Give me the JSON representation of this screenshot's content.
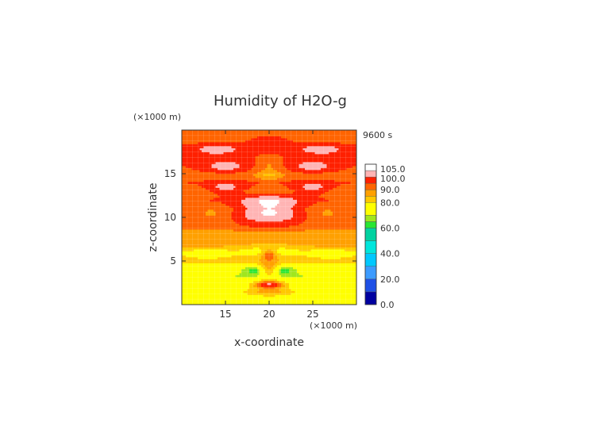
{
  "chart_data": {
    "type": "heatmap",
    "title": "Humidity of H2O-g",
    "time_label": "9600 s",
    "xlabel": "x-coordinate",
    "ylabel": "z-coordinate",
    "x_unit": "(×1000 m)",
    "y_unit": "(×1000 m)",
    "xlim": [
      10,
      30
    ],
    "ylim": [
      0,
      20
    ],
    "x_ticks": [
      15,
      20,
      25
    ],
    "y_ticks": [
      5,
      10,
      15
    ],
    "x_tick_labels": [
      "15",
      "20",
      "25"
    ],
    "y_tick_labels": [
      "5",
      "10",
      "15"
    ],
    "colorbar": {
      "min": 0,
      "max": 105,
      "tick_values": [
        0,
        20,
        40,
        60,
        80,
        90,
        100,
        105
      ],
      "tick_labels": [
        "0.0",
        "20.0",
        "40.0",
        "60.0",
        "80.0",
        "90.0",
        "100.0",
        "105.0"
      ],
      "levels": [
        {
          "from": 0,
          "to": 10,
          "color": "#0000a0"
        },
        {
          "from": 10,
          "to": 20,
          "color": "#1e50e6"
        },
        {
          "from": 20,
          "to": 30,
          "color": "#3c9bff"
        },
        {
          "from": 30,
          "to": 40,
          "color": "#00c8ff"
        },
        {
          "from": 40,
          "to": 50,
          "color": "#00e6dc"
        },
        {
          "from": 50,
          "to": 60,
          "color": "#00d2a0"
        },
        {
          "from": 60,
          "to": 65,
          "color": "#28e632"
        },
        {
          "from": 65,
          "to": 70,
          "color": "#a0e61e"
        },
        {
          "from": 70,
          "to": 80,
          "color": "#ffff00"
        },
        {
          "from": 80,
          "to": 85,
          "color": "#ffc800"
        },
        {
          "from": 85,
          "to": 90,
          "color": "#ffa000"
        },
        {
          "from": 90,
          "to": 95,
          "color": "#ff6400"
        },
        {
          "from": 95,
          "to": 100,
          "color": "#ff2000"
        },
        {
          "from": 100,
          "to": 105,
          "color": "#ffb4b4"
        },
        {
          "from": 105,
          "to": 110,
          "color": "#ffffff"
        }
      ]
    },
    "field": {
      "base_profile": [
        {
          "z": 0.0,
          "v": 80
        },
        {
          "z": 0.6,
          "v": 76
        },
        {
          "z": 1.5,
          "v": 78
        },
        {
          "z": 2.5,
          "v": 74
        },
        {
          "z": 3.3,
          "v": 70
        },
        {
          "z": 4.2,
          "v": 72
        },
        {
          "z": 5.0,
          "v": 84
        },
        {
          "z": 6.0,
          "v": 80
        },
        {
          "z": 7.0,
          "v": 88
        },
        {
          "z": 8.0,
          "v": 86
        },
        {
          "z": 9.0,
          "v": 93
        },
        {
          "z": 10.0,
          "v": 95
        },
        {
          "z": 11.0,
          "v": 93
        },
        {
          "z": 12.0,
          "v": 95
        },
        {
          "z": 13.0,
          "v": 91
        },
        {
          "z": 14.0,
          "v": 95
        },
        {
          "z": 15.0,
          "v": 92
        },
        {
          "z": 16.5,
          "v": 96
        },
        {
          "z": 18.0,
          "v": 97
        },
        {
          "z": 19.0,
          "v": 92
        },
        {
          "z": 20.0,
          "v": 95
        }
      ],
      "blobs": [
        {
          "x": 20,
          "z": 10.8,
          "rx": 3.5,
          "rz": 1.6,
          "a": 12
        },
        {
          "x": 13.5,
          "z": 10.3,
          "rx": 2.2,
          "rz": 1.0,
          "a": -5
        },
        {
          "x": 26.5,
          "z": 10.3,
          "rx": 2.2,
          "rz": 1.0,
          "a": -5
        },
        {
          "x": 15,
          "z": 13.4,
          "rx": 2.2,
          "rz": 0.7,
          "a": 9
        },
        {
          "x": 25,
          "z": 13.4,
          "rx": 2.2,
          "rz": 0.7,
          "a": 9
        },
        {
          "x": 15,
          "z": 15.8,
          "rx": 3.0,
          "rz": 0.7,
          "a": 8
        },
        {
          "x": 25,
          "z": 15.8,
          "rx": 3.0,
          "rz": 0.7,
          "a": 8
        },
        {
          "x": 20,
          "z": 16.2,
          "rx": 1.6,
          "rz": 1.0,
          "a": -6
        },
        {
          "x": 14,
          "z": 17.8,
          "rx": 2.5,
          "rz": 0.6,
          "a": 6
        },
        {
          "x": 26,
          "z": 17.8,
          "rx": 2.5,
          "rz": 0.6,
          "a": 6
        },
        {
          "x": 20,
          "z": 18.8,
          "rx": 2.5,
          "rz": 0.5,
          "a": 6
        },
        {
          "x": 20,
          "z": 14.8,
          "rx": 1.6,
          "rz": 0.5,
          "a": -8
        },
        {
          "x": 20,
          "z": 5.8,
          "rx": 0.8,
          "rz": 0.6,
          "a": 14
        },
        {
          "x": 20,
          "z": 6.5,
          "rx": 3.5,
          "rz": 0.7,
          "a": -5
        },
        {
          "x": 13,
          "z": 5.8,
          "rx": 2.2,
          "rz": 0.5,
          "a": -8
        },
        {
          "x": 27,
          "z": 5.8,
          "rx": 2.2,
          "rz": 0.5,
          "a": -8
        },
        {
          "x": 20,
          "z": 4.0,
          "rx": 1.1,
          "rz": 0.9,
          "a": 16
        },
        {
          "x": 18.4,
          "z": 3.9,
          "rx": 1.1,
          "rz": 0.5,
          "a": -10
        },
        {
          "x": 21.6,
          "z": 3.9,
          "rx": 1.1,
          "rz": 0.5,
          "a": -10
        },
        {
          "x": 20,
          "z": 2.3,
          "rx": 1.8,
          "rz": 0.5,
          "a": 26
        },
        {
          "x": 20,
          "z": 1.4,
          "rx": 2.5,
          "rz": 0.4,
          "a": 8
        },
        {
          "x": 20,
          "z": 12.0,
          "rx": 4.0,
          "rz": 0.6,
          "a": 4
        }
      ]
    }
  }
}
